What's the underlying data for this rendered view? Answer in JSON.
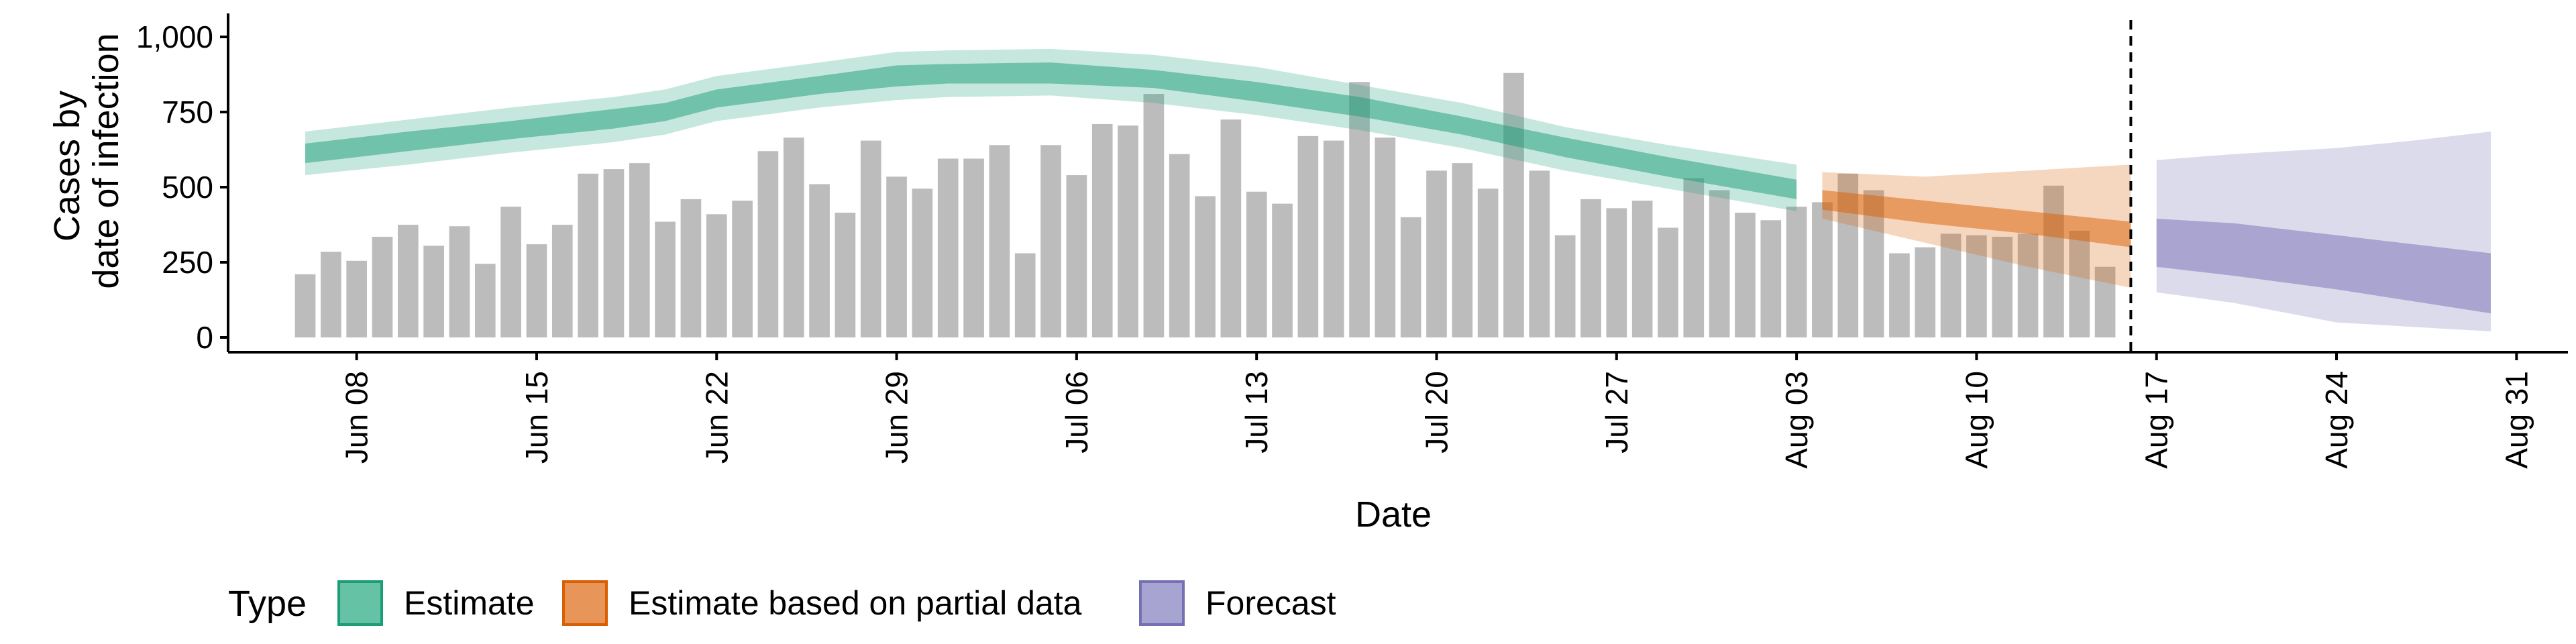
{
  "chart_data": {
    "type": "bar+ribbon",
    "xlabel": "Date",
    "ylabel_lines": [
      "Cases by",
      "date of infection"
    ],
    "ylim": [
      0,
      1050
    ],
    "y_ticks": [
      0,
      250,
      500,
      750,
      1000
    ],
    "y_tick_labels": [
      "0",
      "250",
      "500",
      "750",
      "1,000"
    ],
    "x_range": [
      "2020-06-03",
      "2020-09-02"
    ],
    "x_ticks": [
      "2020-06-08",
      "2020-06-15",
      "2020-06-22",
      "2020-06-29",
      "2020-07-06",
      "2020-07-13",
      "2020-07-20",
      "2020-07-27",
      "2020-08-03",
      "2020-08-10",
      "2020-08-17",
      "2020-08-24",
      "2020-08-31"
    ],
    "x_tick_labels": [
      "Jun 08",
      "Jun 15",
      "Jun 22",
      "Jun 29",
      "Jul 06",
      "Jul 13",
      "Jul 20",
      "Jul 27",
      "Aug 03",
      "Aug 10",
      "Aug 17",
      "Aug 24",
      "Aug 31"
    ],
    "vline_date": "2020-08-16",
    "bars": {
      "start_date": "2020-06-06",
      "values": [
        210,
        285,
        255,
        335,
        375,
        305,
        370,
        245,
        435,
        310,
        375,
        545,
        560,
        580,
        385,
        460,
        410,
        455,
        620,
        665,
        510,
        415,
        655,
        535,
        495,
        595,
        595,
        640,
        280,
        640,
        540,
        710,
        705,
        810,
        610,
        470,
        725,
        485,
        445,
        670,
        655,
        850,
        665,
        400,
        555,
        580,
        495,
        880,
        555,
        340,
        460,
        430,
        455,
        365,
        530,
        490,
        415,
        390,
        435,
        450,
        545,
        490,
        280,
        300,
        345,
        340,
        335,
        345,
        505,
        355,
        235
      ]
    },
    "series": [
      {
        "name": "Estimate",
        "dates": [
          "2020-06-06",
          "2020-06-10",
          "2020-06-14",
          "2020-06-18",
          "2020-06-20",
          "2020-06-22",
          "2020-06-26",
          "2020-06-29",
          "2020-07-01",
          "2020-07-05",
          "2020-07-09",
          "2020-07-13",
          "2020-07-17",
          "2020-07-21",
          "2020-07-25",
          "2020-07-29",
          "2020-08-03"
        ],
        "upper90": [
          685,
          725,
          765,
          800,
          825,
          870,
          915,
          950,
          955,
          960,
          940,
          900,
          840,
          780,
          700,
          640,
          575
        ],
        "upper50": [
          645,
          685,
          720,
          760,
          780,
          825,
          870,
          905,
          910,
          915,
          890,
          850,
          800,
          735,
          665,
          600,
          525
        ],
        "lower50": [
          580,
          620,
          660,
          695,
          720,
          765,
          810,
          835,
          845,
          845,
          830,
          785,
          735,
          675,
          600,
          535,
          460
        ],
        "lower90": [
          540,
          575,
          615,
          650,
          675,
          720,
          765,
          790,
          800,
          805,
          780,
          740,
          690,
          630,
          555,
          495,
          420
        ]
      },
      {
        "name": "Estimate based on partial data",
        "dates": [
          "2020-08-04",
          "2020-08-08",
          "2020-08-12",
          "2020-08-16"
        ],
        "upper90": [
          550,
          535,
          555,
          575
        ],
        "upper50": [
          490,
          455,
          420,
          385
        ],
        "lower50": [
          425,
          380,
          345,
          300
        ],
        "lower90": [
          395,
          315,
          235,
          165
        ]
      },
      {
        "name": "Forecast",
        "dates": [
          "2020-08-17",
          "2020-08-20",
          "2020-08-24",
          "2020-08-27",
          "2020-08-30"
        ],
        "upper90": [
          590,
          610,
          630,
          655,
          685
        ],
        "upper50": [
          395,
          380,
          340,
          310,
          280
        ],
        "lower50": [
          235,
          205,
          160,
          120,
          80
        ],
        "lower90": [
          150,
          115,
          50,
          35,
          20
        ]
      }
    ],
    "legend": {
      "title": "Type",
      "position": "bottom",
      "items": [
        {
          "label": "Estimate",
          "fill": "#66c2a5",
          "stroke": "#1b9e77"
        },
        {
          "label": "Estimate based on partial data",
          "fill": "#e8955a",
          "stroke": "#d95f02"
        },
        {
          "label": "Forecast",
          "fill": "#a8a4d1",
          "stroke": "#7570b3"
        }
      ]
    },
    "colors": {
      "bars": "#a6a6a6",
      "Estimate": "#1b9e77",
      "Estimate based on partial data": "#d95f02",
      "Forecast": "#7570b3"
    },
    "grid": false
  }
}
